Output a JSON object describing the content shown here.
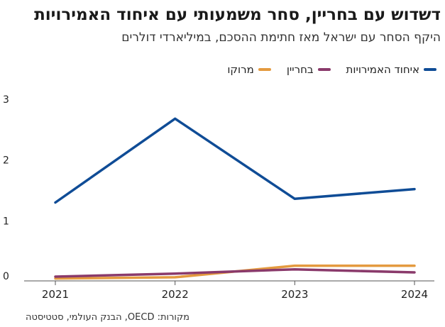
{
  "chart": {
    "title": "דשדוש עם בחריין, סחר משמעותי עם איחוד האמירויות",
    "subtitle": "היקף הסחר עם ישראל מאז חתימת ההסכם, במיליארדי דולרים",
    "source": "מקורות: OECD, הבנק העולמי, סטטיסטה"
  },
  "chart_data": {
    "type": "line",
    "title": "דשדוש עם בחריין, סחר משמעותי עם איחוד האמירויות",
    "subtitle": "היקף הסחר עם ישראל מאז חתימת ההסכם, במיליארדי דולרים",
    "x": [
      "2021",
      "2022",
      "2023",
      "2024"
    ],
    "yticks": [
      "0",
      "1",
      "2",
      "3"
    ],
    "ylim": [
      0,
      3
    ],
    "grid": false,
    "legend_position": "top-right",
    "series": [
      {
        "name": "איחוד האמירויות",
        "color": "#0f4c96",
        "values": [
          1.29,
          2.67,
          1.35,
          1.51
        ]
      },
      {
        "name": "בחריין",
        "color": "#8a3a6b",
        "values": [
          0.07,
          0.12,
          0.19,
          0.14
        ]
      },
      {
        "name": "מרוקו",
        "color": "#e49a3f",
        "values": [
          0.04,
          0.06,
          0.25,
          0.25
        ]
      }
    ]
  }
}
